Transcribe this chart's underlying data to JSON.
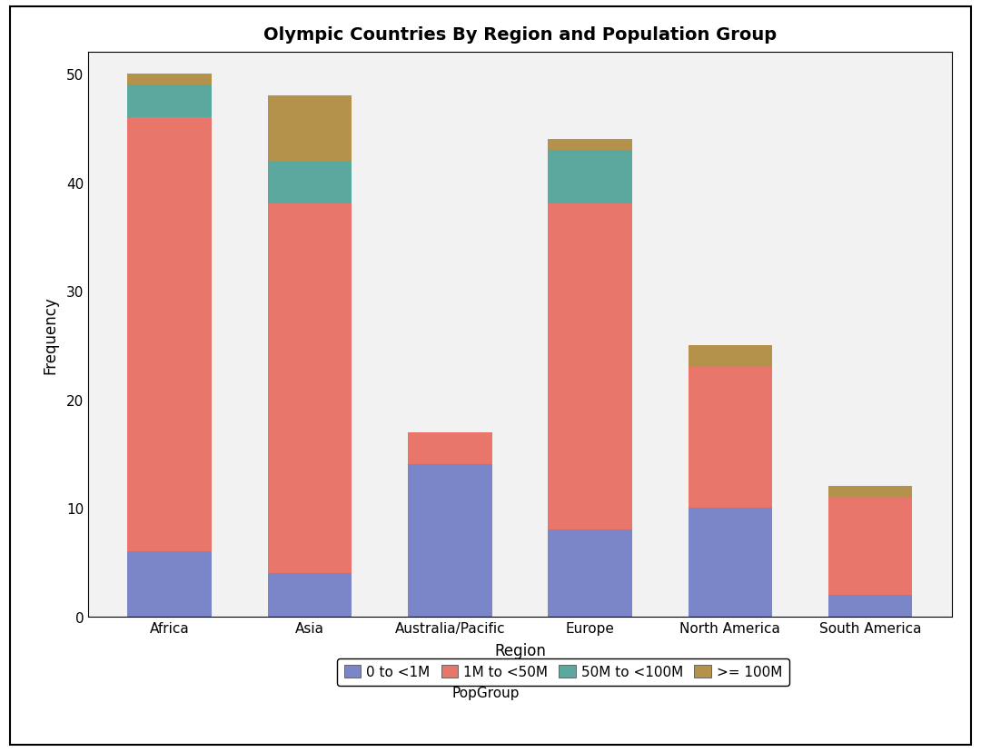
{
  "title": "Olympic Countries By Region and Population Group",
  "xlabel": "Region",
  "ylabel": "Frequency",
  "categories": [
    "Africa",
    "Asia",
    "Australia/Pacific",
    "Europe",
    "North America",
    "South America"
  ],
  "series": {
    "0 to <1M": [
      6,
      4,
      14,
      8,
      10,
      2
    ],
    "1M to <50M": [
      40,
      34,
      3,
      30,
      13,
      9
    ],
    "50M to <100M": [
      3,
      4,
      0,
      5,
      0,
      0
    ],
    ">= 100M": [
      1,
      6,
      0,
      1,
      2,
      1
    ]
  },
  "colors": {
    "0 to <1M": "#7b86c8",
    "1M to <50M": "#e8766a",
    "50M to <100M": "#5ba89e",
    ">= 100M": "#b5924c"
  },
  "legend_labels": [
    "0 to <1M",
    "1M to <50M",
    "50M to <100M",
    ">= 100M"
  ],
  "ylim": [
    0,
    52
  ],
  "yticks": [
    0,
    10,
    20,
    30,
    40,
    50
  ],
  "bar_width": 0.6,
  "background_color": "#ffffff",
  "plot_bg_color": "#f2f2f2",
  "title_fontsize": 14,
  "axis_fontsize": 12,
  "tick_fontsize": 11,
  "legend_fontsize": 11
}
